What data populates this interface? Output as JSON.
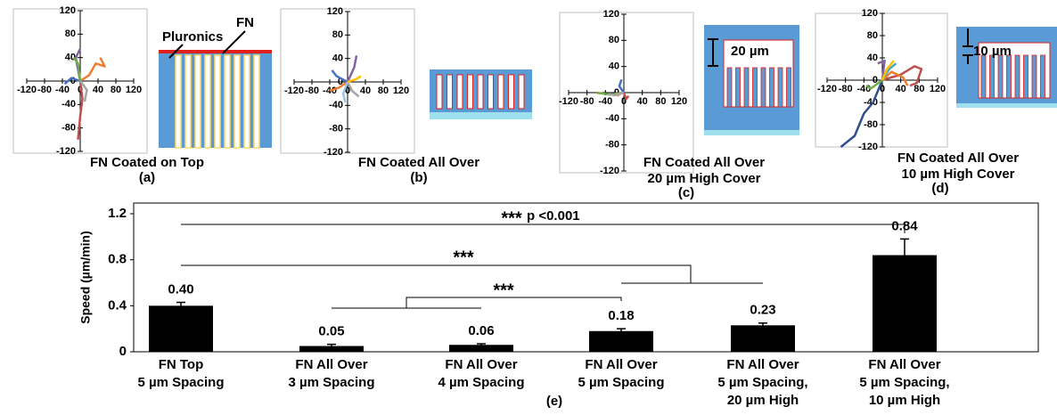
{
  "chart_data": [
    {
      "type": "line",
      "caption": [
        "FN Coated on Top"
      ],
      "panel_label": "(a)",
      "annotations": [
        "Pluronics",
        "FN"
      ],
      "xlim": [
        -120,
        120
      ],
      "ylim": [
        -120,
        120
      ],
      "xticks": [
        -120,
        -80,
        -40,
        0,
        40,
        80,
        120
      ],
      "yticks": [
        -120,
        -80,
        -40,
        0,
        40,
        80,
        120
      ],
      "series": [
        {
          "color": "#ed7d31",
          "x": [
            0,
            20,
            35,
            55,
            45
          ],
          "values": [
            0,
            10,
            30,
            25,
            40
          ]
        },
        {
          "color": "#c0504d",
          "x": [
            0,
            5,
            0,
            -5
          ],
          "values": [
            0,
            -30,
            -60,
            -100
          ]
        },
        {
          "color": "#8064a2",
          "x": [
            0,
            -5,
            -10,
            0
          ],
          "values": [
            0,
            20,
            40,
            55
          ]
        },
        {
          "color": "#4472c4",
          "x": [
            0,
            -20,
            -35
          ],
          "values": [
            0,
            5,
            -5
          ]
        },
        {
          "color": "#70ad47",
          "x": [
            0,
            -5,
            -15
          ],
          "values": [
            0,
            30,
            40
          ]
        },
        {
          "color": "#a5a5a5",
          "x": [
            0,
            15,
            10
          ],
          "values": [
            0,
            -15,
            -35
          ]
        }
      ]
    },
    {
      "type": "line",
      "caption": [
        "FN Coated All Over"
      ],
      "panel_label": "(b)",
      "annotations": [],
      "xlim": [
        -120,
        120
      ],
      "ylim": [
        -120,
        120
      ],
      "xticks": [
        -120,
        -80,
        -40,
        0,
        40,
        80,
        120
      ],
      "yticks": [
        -120,
        -80,
        -40,
        0,
        40,
        80,
        120
      ],
      "series": [
        {
          "color": "#ed7d31",
          "x": [
            0,
            -20,
            -40
          ],
          "values": [
            0,
            -10,
            -15
          ]
        },
        {
          "color": "#8064a2",
          "x": [
            0,
            15,
            20
          ],
          "values": [
            0,
            25,
            45
          ]
        },
        {
          "color": "#4472c4",
          "x": [
            0,
            -25,
            -35
          ],
          "values": [
            0,
            10,
            20
          ]
        },
        {
          "color": "#a5a5a5",
          "x": [
            0,
            10,
            25
          ],
          "values": [
            0,
            -15,
            -25
          ]
        },
        {
          "color": "#9dc3e6",
          "x": [
            0,
            -10,
            -5
          ],
          "values": [
            0,
            -20,
            -35
          ]
        },
        {
          "color": "#ffc000",
          "x": [
            0,
            20,
            30
          ],
          "values": [
            0,
            5,
            10
          ]
        }
      ]
    },
    {
      "type": "line",
      "caption": [
        "FN Coated All Over",
        "20 µm High Cover"
      ],
      "panel_label": "(c)",
      "annotations": [
        "20 µm"
      ],
      "xlim": [
        -120,
        120
      ],
      "ylim": [
        -120,
        120
      ],
      "xticks": [
        -120,
        -80,
        -40,
        0,
        40,
        80,
        120
      ],
      "yticks": [
        -120,
        -80,
        -40,
        0,
        40,
        80,
        120
      ],
      "series": [
        {
          "color": "#70ad47",
          "x": [
            0,
            -30,
            -60
          ],
          "values": [
            0,
            -3,
            0
          ]
        },
        {
          "color": "#4472c4",
          "x": [
            0,
            -10,
            -5
          ],
          "values": [
            0,
            10,
            20
          ]
        },
        {
          "color": "#ed7d31",
          "x": [
            0,
            -8,
            -15
          ],
          "values": [
            0,
            -2,
            -5
          ]
        },
        {
          "color": "#c0504d",
          "x": [
            0,
            5,
            10
          ],
          "values": [
            0,
            -10,
            -5
          ]
        },
        {
          "color": "#a5a5a5",
          "x": [
            0,
            -20,
            -35
          ],
          "values": [
            0,
            -4,
            -2
          ]
        }
      ]
    },
    {
      "type": "line",
      "caption": [
        "FN Coated All Over",
        "10 µm High Cover"
      ],
      "panel_label": "(d)",
      "annotations": [
        "10 µm"
      ],
      "xlim": [
        -120,
        120
      ],
      "ylim": [
        -120,
        120
      ],
      "xticks": [
        -120,
        -80,
        -40,
        0,
        40,
        80,
        120
      ],
      "yticks": [
        -120,
        -80,
        -40,
        0,
        40,
        80,
        120
      ],
      "series": [
        {
          "color": "#c0504d",
          "x": [
            0,
            40,
            70,
            85,
            75,
            60
          ],
          "values": [
            0,
            10,
            25,
            20,
            -5,
            -10
          ]
        },
        {
          "color": "#2f4f8f",
          "x": [
            0,
            -20,
            -40,
            -60,
            -90
          ],
          "values": [
            0,
            -40,
            -60,
            -100,
            -120
          ]
        },
        {
          "color": "#ed7d31",
          "x": [
            0,
            20,
            45,
            55
          ],
          "values": [
            0,
            15,
            5,
            -10
          ]
        },
        {
          "color": "#70ad47",
          "x": [
            0,
            -25,
            -35
          ],
          "values": [
            0,
            -15,
            -10
          ]
        },
        {
          "color": "#4bacc6",
          "x": [
            0,
            15,
            30
          ],
          "values": [
            0,
            20,
            30
          ]
        },
        {
          "color": "#8064a2",
          "x": [
            0,
            5,
            -10
          ],
          "values": [
            0,
            35,
            30
          ]
        },
        {
          "color": "#ffc000",
          "x": [
            0,
            10,
            25
          ],
          "values": [
            0,
            20,
            35
          ]
        }
      ]
    },
    {
      "type": "bar",
      "ylabel": "Speed (µm/min)",
      "xlabel": "(e)",
      "color": "#000000",
      "categories": [
        [
          "FN Top",
          "5 µm Spacing"
        ],
        [
          "FN All Over",
          "3 µm Spacing"
        ],
        [
          "FN All Over",
          "4 µm Spacing"
        ],
        [
          "FN All Over",
          "5 µm Spacing"
        ],
        [
          "FN All Over",
          "5 µm Spacing,",
          "20 µm High"
        ],
        [
          "FN All Over",
          "5 µm Spacing,",
          "10 µm High"
        ]
      ],
      "values": [
        0.4,
        0.05,
        0.06,
        0.18,
        0.23,
        0.84
      ],
      "value_labels": [
        "0.40",
        "0.05",
        "0.06",
        "0.18",
        "0.23",
        "0.84"
      ],
      "errors": [
        0.03,
        0.015,
        0.01,
        0.02,
        0.02,
        0.14
      ],
      "ylim": [
        0,
        1.2
      ],
      "yticks": [
        0,
        0.4,
        0.8,
        1.2
      ],
      "annotations": [
        "***",
        "p <0.001",
        "***",
        "***"
      ]
    }
  ]
}
